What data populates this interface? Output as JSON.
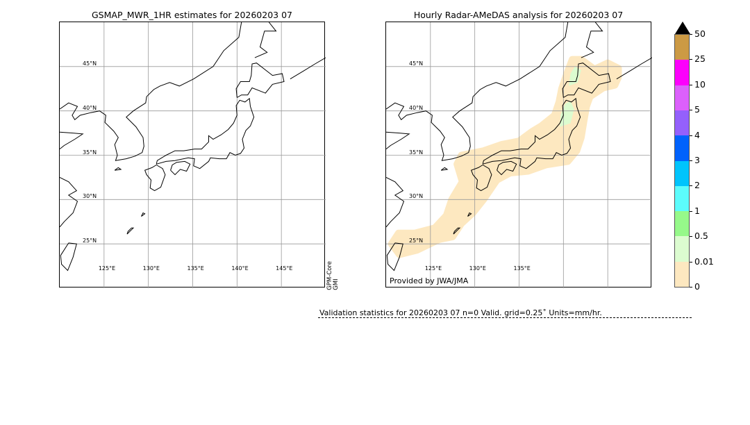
{
  "left_panel": {
    "title": "GSMAP_MWR_1HR estimates for 20260203 07",
    "side_label": [
      "GPM-Core",
      "GMI"
    ],
    "lat_labels": [
      "45°N",
      "40°N",
      "35°N",
      "30°N",
      "25°N"
    ],
    "lon_labels": [
      "125°E",
      "130°E",
      "135°E",
      "140°E",
      "145°E"
    ]
  },
  "right_panel": {
    "title": "Hourly Radar-AMeDAS analysis for 20260203 07",
    "credit": "Provided by JWA/JMA",
    "lat_labels": [
      "45°N",
      "40°N",
      "35°N",
      "30°N",
      "25°N"
    ],
    "lon_labels": [
      "125°E",
      "130°E",
      "135°E"
    ]
  },
  "map_extent": {
    "lon": [
      120,
      150
    ],
    "lat": [
      20,
      50
    ],
    "grid_lon": [
      125,
      130,
      135,
      140,
      145
    ],
    "grid_lat": [
      45,
      40,
      35,
      30,
      25
    ]
  },
  "colorbar": {
    "levels": [
      "0",
      "0.01",
      "0.5",
      "1",
      "2",
      "3",
      "4",
      "5",
      "10",
      "25",
      "50"
    ],
    "colors": [
      "#fde8c0",
      "#dcfcd0",
      "#96f98a",
      "#5cfcfc",
      "#00c4fc",
      "#0062fc",
      "#9460fc",
      "#dc60fc",
      "#fc00fc",
      "#cc9a44"
    ],
    "extend_color": "#000000"
  },
  "validation": {
    "text": "Validation statistics for 20260203 07  n=0 Valid. grid=0.25˚ Units=mm/hr."
  }
}
